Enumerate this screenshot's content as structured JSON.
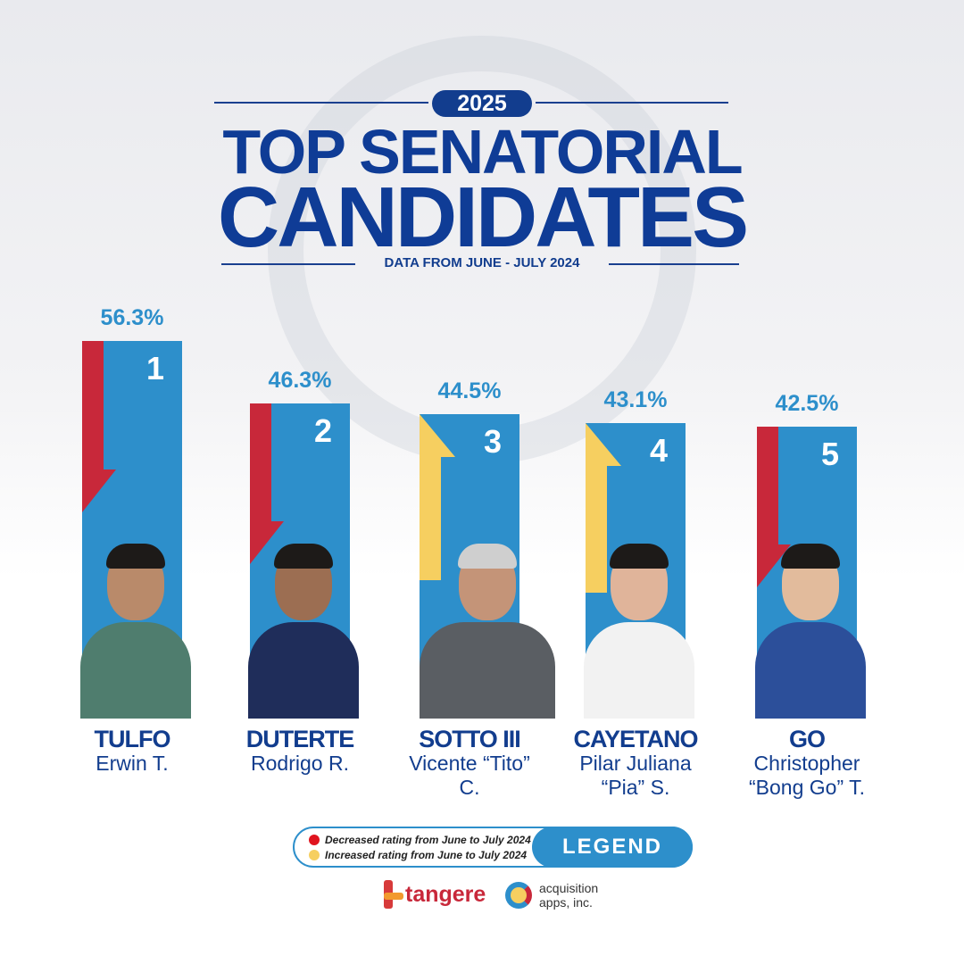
{
  "header": {
    "year": "2025",
    "title_line1": "TOP SENATORIAL",
    "title_line2": "CANDIDATES",
    "subtitle": "DATA FROM JUNE - JULY 2024"
  },
  "chart_data": {
    "type": "bar",
    "categories": [
      "TULFO Erwin T.",
      "DUTERTE Rodrigo R.",
      "SOTTO III Vicente “Tito” C.",
      "CAYETANO Pilar Juliana “Pia” S.",
      "GO Christopher “Bong Go” T."
    ],
    "values": [
      56.3,
      46.3,
      44.5,
      43.1,
      42.5
    ],
    "unit": "%",
    "candidates": [
      {
        "rank": "1",
        "pct": "56.3%",
        "value": 56.3,
        "surname": "TULFO",
        "given": "Erwin T.",
        "trend": "decreased"
      },
      {
        "rank": "2",
        "pct": "46.3%",
        "value": 46.3,
        "surname": "DUTERTE",
        "given": "Rodrigo R.",
        "trend": "decreased"
      },
      {
        "rank": "3",
        "pct": "44.5%",
        "value": 44.5,
        "surname": "SOTTO III",
        "given": "Vicente “Tito” C.",
        "trend": "increased"
      },
      {
        "rank": "4",
        "pct": "43.1%",
        "value": 43.1,
        "surname": "CAYETANO",
        "given": "Pilar Juliana “Pia” S.",
        "trend": "increased"
      },
      {
        "rank": "5",
        "pct": "42.5%",
        "value": 42.5,
        "surname": "GO",
        "given": "Christopher “Bong Go” T.",
        "trend": "decreased"
      }
    ],
    "colors": {
      "bar": "#2d8fcb",
      "decreased": "#c8283a",
      "increased": "#f6cf60"
    }
  },
  "legend": {
    "title": "LEGEND",
    "decreased": "Decreased rating from June to July 2024",
    "increased": "Increased rating from June to July 2024"
  },
  "logos": {
    "tangere": "tangere",
    "acquisition": "acquisition apps, inc."
  }
}
